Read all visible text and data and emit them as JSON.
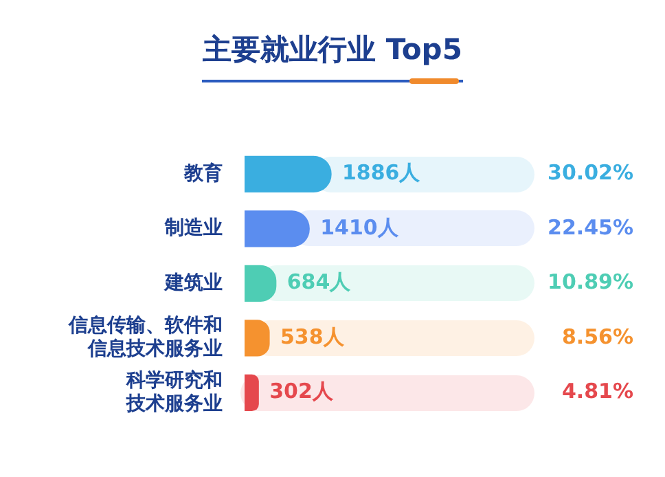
{
  "chart_data": {
    "type": "bar",
    "orientation": "horizontal",
    "title": "主要就业行业 Top5",
    "categories": [
      "教育",
      "制造业",
      "建筑业",
      "信息传输、软件和信息技术服务业",
      "科学研究和技术服务业"
    ],
    "values": [
      1886,
      1410,
      684,
      538,
      302
    ],
    "colors": [
      "#3aaee0",
      "#5b8def",
      "#4ecdb4",
      "#f5922f",
      "#e5484d"
    ],
    "value_labels": [
      "1886人",
      "1410人",
      "684人",
      "538人",
      "302人"
    ],
    "annotations": [
      "30.02%",
      "22.45%",
      "10.89%",
      "8.56%",
      "4.81%"
    ],
    "legend": false,
    "grid": false
  }
}
